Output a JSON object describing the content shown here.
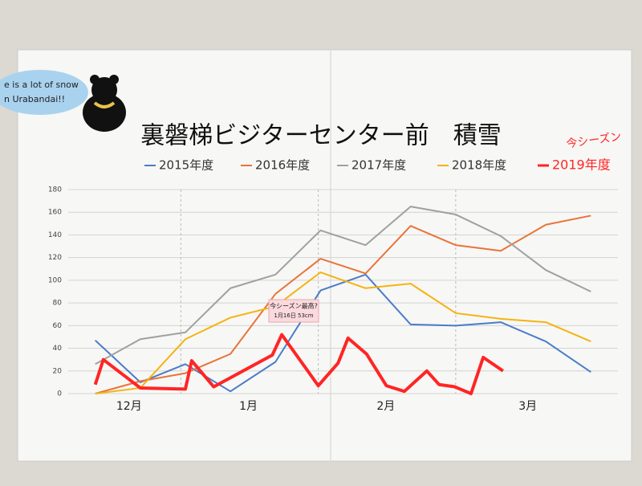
{
  "chart_data": {
    "type": "line",
    "title": "裏磐梯ビジターセンター前　積雪",
    "bubble_text": [
      "e is a lot of snow",
      "n Urabandai!!"
    ],
    "handwritten_note": "今シーズン",
    "annotation": [
      "今シーズン最高?",
      "1月16日 53cm"
    ],
    "xlim": [
      -0.6,
      11.6
    ],
    "xticks": [
      {
        "value": 0.75,
        "label": "12月"
      },
      {
        "value": 3.4,
        "label": "1月"
      },
      {
        "value": 6.45,
        "label": "2月"
      },
      {
        "value": 9.6,
        "label": "3月"
      }
    ],
    "xgrid": [
      1.9,
      4.95,
      8.0
    ],
    "ylim": [
      0,
      180
    ],
    "yticks": [
      0,
      20,
      40,
      60,
      80,
      100,
      120,
      140,
      160,
      180
    ],
    "grid": true,
    "series": [
      {
        "name": "2015年度",
        "color": "#4a7cc9",
        "x": [
          0,
          1,
          2,
          3,
          4,
          5,
          6,
          7,
          8,
          9,
          10,
          11
        ],
        "values": [
          47,
          10,
          26,
          2,
          28,
          91,
          105,
          61,
          60,
          63,
          46,
          19
        ]
      },
      {
        "name": "2016年度",
        "color": "#e8743b",
        "x": [
          0,
          1,
          2,
          3,
          4,
          5,
          6,
          7,
          8,
          9,
          10,
          11
        ],
        "values": [
          0,
          11,
          18,
          35,
          88,
          119,
          106,
          148,
          131,
          126,
          149,
          157
        ]
      },
      {
        "name": "2017年度",
        "color": "#a0a0a0",
        "x": [
          0,
          1,
          2,
          3,
          4,
          5,
          6,
          7,
          8,
          9,
          10,
          11
        ],
        "values": [
          26,
          48,
          54,
          93,
          105,
          144,
          131,
          165,
          158,
          139,
          109,
          90
        ]
      },
      {
        "name": "2018年度",
        "color": "#f5b312",
        "x": [
          0,
          1,
          2,
          3,
          4,
          5,
          6,
          7,
          8,
          9,
          10,
          11
        ],
        "values": [
          0,
          5,
          48,
          67,
          77,
          107,
          93,
          97,
          71,
          66,
          63,
          46
        ]
      },
      {
        "name": "2019年度",
        "color": "#ff2525",
        "x": [
          0,
          0.18,
          1.0,
          2.0,
          2.14,
          2.63,
          3.93,
          4.14,
          4.95,
          5.39,
          5.61,
          6.02,
          6.46,
          6.86,
          7.36,
          7.63,
          7.98,
          8.34,
          8.61,
          9.05
        ],
        "values": [
          8,
          30,
          5,
          4,
          29,
          6,
          34,
          52,
          7,
          27,
          49,
          35,
          7,
          2,
          20,
          8,
          6,
          0,
          32,
          20
        ]
      }
    ]
  }
}
